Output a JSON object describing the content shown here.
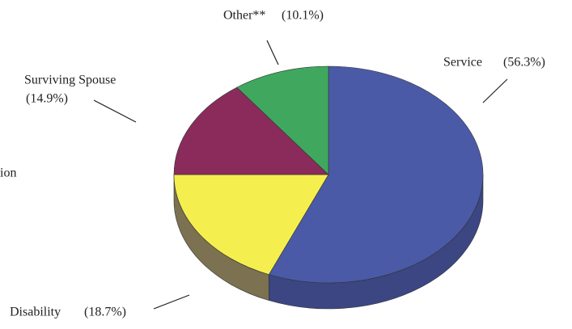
{
  "chart_data": {
    "type": "pie3d",
    "categories": [
      "Service",
      "Disability",
      "Surviving Spouse",
      "Other**"
    ],
    "values": [
      56.3,
      18.7,
      14.9,
      10.1
    ],
    "value_labels": [
      "(56.3%)",
      "(18.7%)",
      "(14.9%)",
      "(10.1%)"
    ],
    "colors": [
      "#4b5aa6",
      "#f4ef4e",
      "#8a2b5c",
      "#3fa85e"
    ],
    "side_colors": [
      "#3b4682",
      "#7c7150",
      "#5e2a45",
      "#2e7a44"
    ],
    "annotations": [
      "ion"
    ]
  }
}
